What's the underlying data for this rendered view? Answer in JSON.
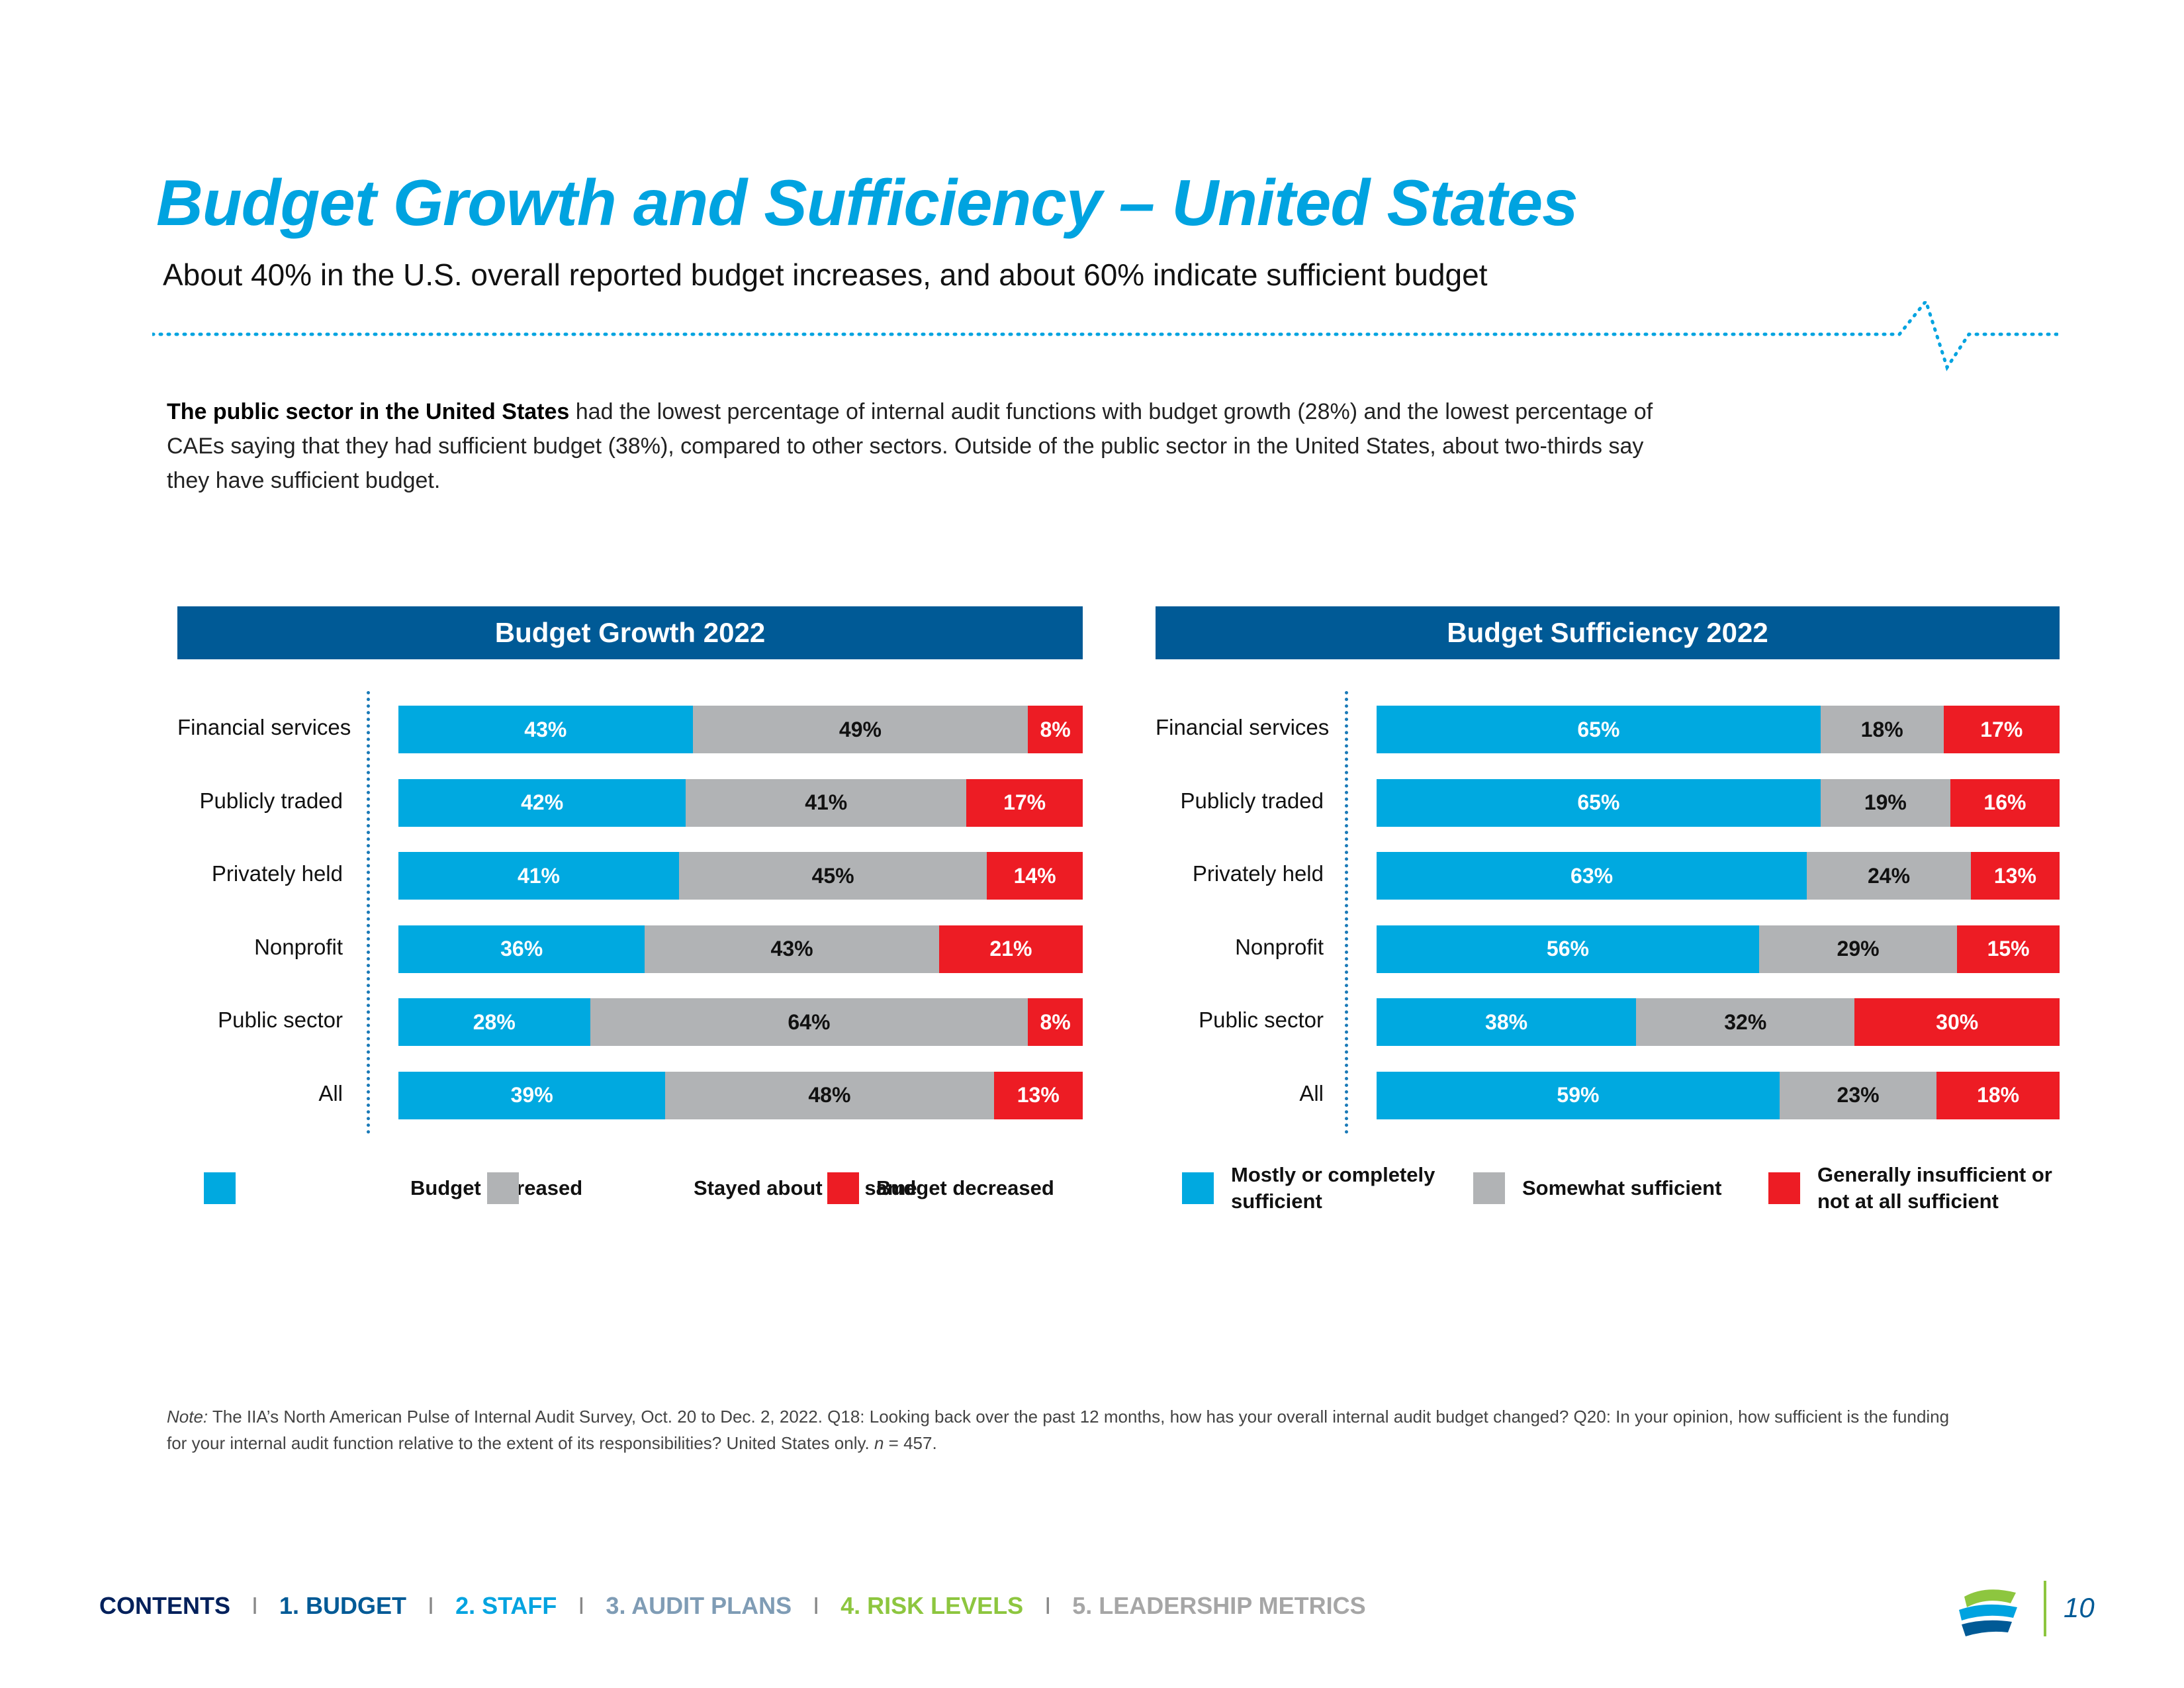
{
  "page": {
    "title": "Budget Growth and Sufficiency – United States",
    "subtitle": "About 40% in the U.S. overall reported budget increases, and about 60% indicate sufficient budget",
    "intro_bold": "The public sector in the United States",
    "intro_rest": " had the lowest percentage of internal audit functions with budget growth (28%) and the lowest percentage of CAEs saying that they had sufficient budget (38%), compared to other sectors. Outside of the public sector in the United States, about two-thirds say they have sufficient budget.",
    "note_label": "Note:",
    "note_text": " The IIA’s North American Pulse of Internal Audit Survey, Oct. 20 to Dec. 2, 2022. Q18: Looking back over the past 12 months, how has your overall internal audit budget changed? Q20: In your opinion, how sufficient is the funding for your internal audit function relative to the extent of its responsibilities? United States only. ",
    "note_n": "n",
    "note_n_value": " = 457.",
    "page_number": "10"
  },
  "nav": {
    "items": [
      {
        "label": "CONTENTS",
        "color": "#00205b"
      },
      {
        "label": "1. BUDGET",
        "color": "#005a96"
      },
      {
        "label": "2. STAFF",
        "color": "#00a3e0"
      },
      {
        "label": "3. AUDIT PLANS",
        "color": "#7f9cb5"
      },
      {
        "label": "4. RISK LEVELS",
        "color": "#8dc63f"
      },
      {
        "label": "5. LEADERSHIP METRICS",
        "color": "#a6a6a6"
      }
    ],
    "separator": "I"
  },
  "colors": {
    "blue": "#00a9e0",
    "gray": "#b1b3b5",
    "red": "#ed1c24",
    "header": "#005a96",
    "title": "#00a3e0"
  },
  "chart_data": [
    {
      "type": "bar",
      "stacked": true,
      "orientation": "horizontal",
      "title": "Budget Growth 2022",
      "categories": [
        "Financial services",
        "Publicly traded",
        "Privately held",
        "Nonprofit",
        "Public sector",
        "All"
      ],
      "series": [
        {
          "name": "Budget Increased",
          "color": "#00a9e0",
          "label_color": "#ffffff",
          "values": [
            43,
            42,
            41,
            36,
            28,
            39
          ]
        },
        {
          "name": "Stayed about the same",
          "color": "#b1b3b5",
          "label_color": "#111111",
          "values": [
            49,
            41,
            45,
            43,
            64,
            48
          ]
        },
        {
          "name": "Budget decreased",
          "color": "#ed1c24",
          "label_color": "#ffffff",
          "values": [
            8,
            17,
            14,
            21,
            8,
            13
          ]
        }
      ],
      "value_suffix": "%",
      "xlim": [
        0,
        100
      ],
      "legend_position": "bottom"
    },
    {
      "type": "bar",
      "stacked": true,
      "orientation": "horizontal",
      "title": "Budget Sufficiency 2022",
      "categories": [
        "Financial services",
        "Publicly traded",
        "Privately held",
        "Nonprofit",
        "Public sector",
        "All"
      ],
      "series": [
        {
          "name": "Mostly or completely sufficient",
          "color": "#00a9e0",
          "label_color": "#ffffff",
          "values": [
            65,
            65,
            63,
            56,
            38,
            59
          ]
        },
        {
          "name": "Somewhat sufficient",
          "color": "#b1b3b5",
          "label_color": "#111111",
          "values": [
            18,
            19,
            24,
            29,
            32,
            23
          ]
        },
        {
          "name": "Generally insufficient or not at all sufficient",
          "color": "#ed1c24",
          "label_color": "#ffffff",
          "values": [
            17,
            16,
            13,
            15,
            30,
            18
          ]
        }
      ],
      "value_suffix": "%",
      "xlim": [
        0,
        100
      ],
      "legend_position": "bottom"
    }
  ]
}
